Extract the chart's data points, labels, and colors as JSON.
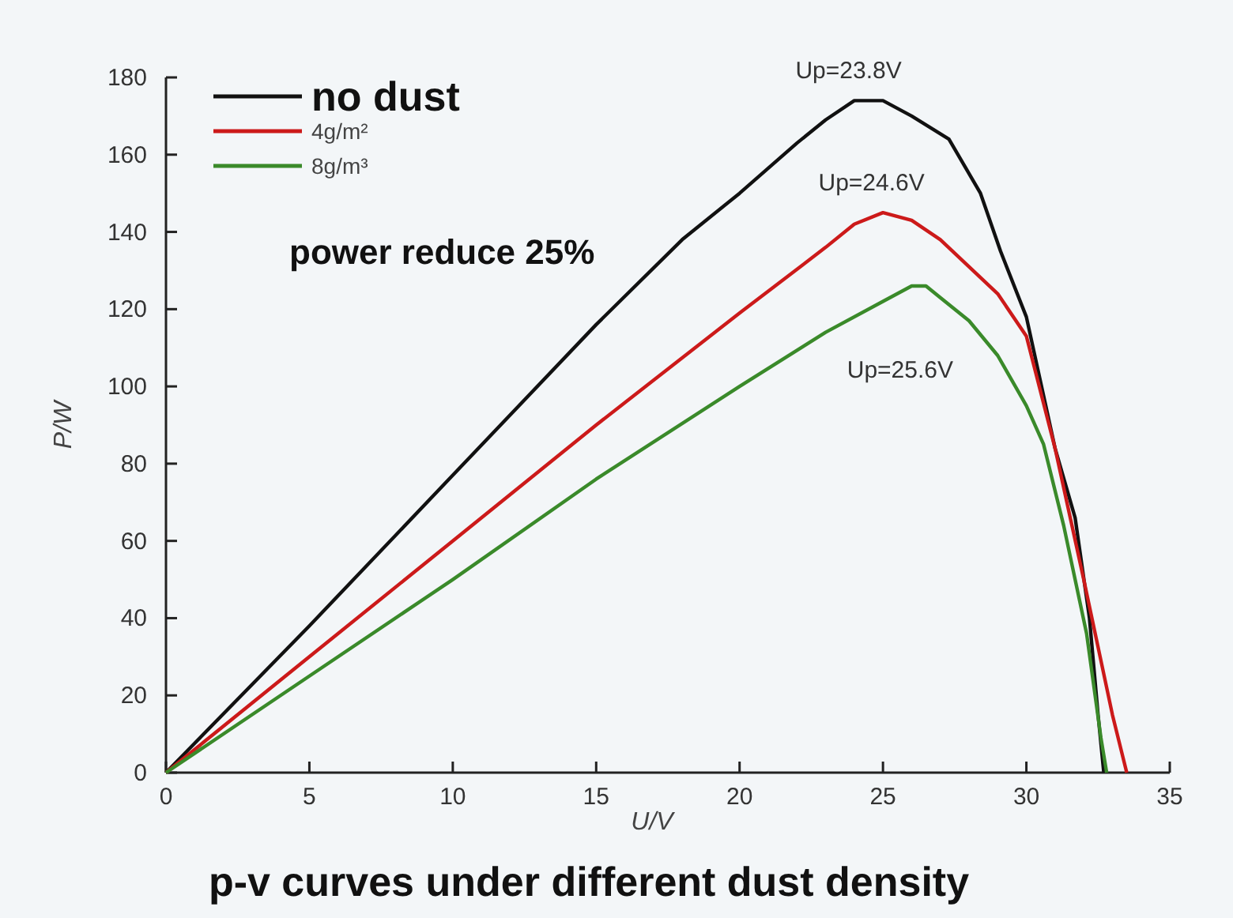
{
  "chart_data": {
    "type": "line",
    "title": "p-v curves under different dust density",
    "xlabel": "U/V",
    "ylabel": "P/W",
    "xlim": [
      0,
      35
    ],
    "ylim": [
      0,
      180
    ],
    "xticks": [
      0,
      5,
      10,
      15,
      20,
      25,
      30,
      35
    ],
    "yticks": [
      0,
      20,
      40,
      60,
      80,
      100,
      120,
      140,
      160,
      180
    ],
    "grid": false,
    "legend": "top left",
    "line_style": "solid",
    "annotations": [
      "power reduce 25%",
      {
        "text": "Up=23.8V",
        "x": 23.8,
        "y": 174
      },
      {
        "text": "Up=24.6V",
        "x": 24.6,
        "y": 145
      },
      {
        "text": "Up=25.6V",
        "x": 25.6,
        "y": 126
      }
    ],
    "series": [
      {
        "name": "no dust",
        "color": "#111111",
        "x": [
          0,
          5,
          10,
          15,
          18,
          20,
          22,
          23,
          24,
          25,
          26,
          27.3,
          28.4,
          29.1,
          30,
          31,
          31.7,
          32.2,
          32.5,
          32.7
        ],
        "values": [
          0,
          38,
          77,
          116,
          138,
          150,
          163,
          169,
          174,
          174,
          170,
          164,
          150,
          135,
          118,
          84,
          66,
          40,
          15,
          0
        ]
      },
      {
        "name": "4g/m²",
        "color": "#cc1a1a",
        "x": [
          0,
          5,
          10,
          15,
          20,
          23,
          24,
          25,
          26,
          27,
          28,
          29,
          30,
          31,
          32,
          33,
          33.5
        ],
        "values": [
          0,
          30,
          60,
          90,
          119,
          136,
          142,
          145,
          143,
          138,
          131,
          124,
          113,
          84,
          50,
          15,
          0
        ]
      },
      {
        "name": "8g/m³",
        "color": "#3a8a2a",
        "x": [
          0,
          5,
          10,
          15,
          20,
          23,
          25,
          26,
          26.5,
          27,
          28,
          29,
          30,
          30.6,
          31.3,
          32.1,
          32.6,
          32.8
        ],
        "values": [
          0,
          25,
          50,
          76,
          100,
          114,
          122,
          126,
          126,
          123,
          117,
          108,
          95,
          85,
          64,
          36,
          9,
          0
        ]
      }
    ]
  }
}
